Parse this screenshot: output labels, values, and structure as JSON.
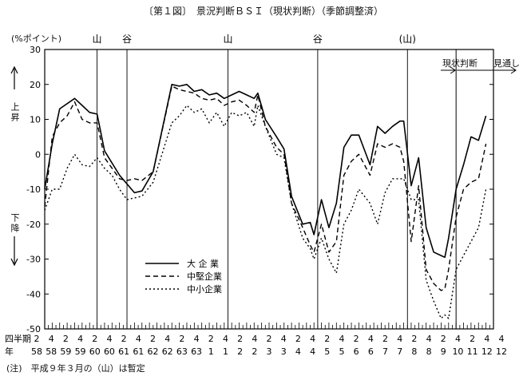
{
  "page": {
    "title": "〔第１図〕　景況判断ＢＳＩ（現状判断）（季節調整済）",
    "unit": "(%ポイント)",
    "up_label": "上昇",
    "down_label": "下降",
    "note": "(注)　平成９年３月の（山）は暫定",
    "x_row1_label": "四半期",
    "x_row2_label": "年",
    "current_label": "現状判断",
    "forecast_label": "見通し"
  },
  "chart_data": {
    "type": "line",
    "ylim": [
      -50,
      30
    ],
    "yticks": [
      30,
      20,
      10,
      0,
      -10,
      -20,
      -30,
      -40,
      -50
    ],
    "grid": false,
    "legend_position": "center-left",
    "quarter_labels": [
      "2",
      "4",
      "2",
      "4",
      "2",
      "4",
      "2",
      "4",
      "2",
      "4",
      "2",
      "4",
      "2",
      "4",
      "2",
      "4",
      "2",
      "4",
      "2",
      "4",
      "2",
      "4",
      "2",
      "4",
      "2",
      "4",
      "2",
      "4",
      "2",
      "4",
      "2",
      "4",
      "4"
    ],
    "year_labels": [
      "58",
      "58",
      "59",
      "59",
      "60",
      "60",
      "61",
      "61",
      "62",
      "62",
      "63",
      "63",
      "1",
      "1",
      "2",
      "2",
      "3",
      "3",
      "4",
      "4",
      "5",
      "5",
      "6",
      "6",
      "7",
      "7",
      "8",
      "8",
      "9",
      "10",
      "11",
      "12",
      "12"
    ],
    "phase_markers": [
      {
        "label": "山",
        "x": 14
      },
      {
        "label": "谷",
        "x": 22
      },
      {
        "label": "山",
        "x": 49
      },
      {
        "label": "谷",
        "x": 73
      },
      {
        "label": "(山)",
        "x": 97
      }
    ],
    "forecast_start_x": 110,
    "series": [
      {
        "name": "大 企 業",
        "dash": "",
        "color": "#000000",
        "points": [
          [
            0,
            -10
          ],
          [
            2,
            3
          ],
          [
            4,
            13
          ],
          [
            8,
            16
          ],
          [
            10,
            14
          ],
          [
            12,
            12
          ],
          [
            14,
            11.5
          ],
          [
            16,
            1
          ],
          [
            20,
            -6
          ],
          [
            24,
            -11
          ],
          [
            26,
            -10.5
          ],
          [
            29,
            -5
          ],
          [
            34,
            20
          ],
          [
            36,
            19.5
          ],
          [
            38,
            20
          ],
          [
            40,
            18
          ],
          [
            42,
            18.5
          ],
          [
            44,
            17
          ],
          [
            46,
            17.5
          ],
          [
            48,
            16
          ],
          [
            50,
            17
          ],
          [
            52,
            18
          ],
          [
            54,
            17
          ],
          [
            56,
            16
          ],
          [
            57,
            17.5
          ],
          [
            59,
            10
          ],
          [
            62,
            5
          ],
          [
            64,
            1.5
          ],
          [
            66,
            -12
          ],
          [
            69,
            -20
          ],
          [
            71,
            -19.5
          ],
          [
            72,
            -23
          ],
          [
            74,
            -13
          ],
          [
            76,
            -21
          ],
          [
            78,
            -14
          ],
          [
            80,
            2
          ],
          [
            82,
            5.5
          ],
          [
            84,
            5.5
          ],
          [
            87,
            -3
          ],
          [
            89,
            8
          ],
          [
            91,
            6
          ],
          [
            93,
            8
          ],
          [
            95,
            9.5
          ],
          [
            96,
            9.5
          ],
          [
            98,
            -9
          ],
          [
            100,
            -1
          ],
          [
            102,
            -21
          ],
          [
            104,
            -28
          ],
          [
            106,
            -29
          ],
          [
            107,
            -29.5
          ],
          [
            108,
            -24
          ],
          [
            110,
            -10
          ],
          [
            112,
            -3
          ],
          [
            114,
            5
          ],
          [
            116,
            4
          ],
          [
            118,
            11
          ]
        ]
      },
      {
        "name": "中堅企業",
        "dash": "6,4",
        "color": "#000000",
        "points": [
          [
            0,
            -15
          ],
          [
            2,
            5
          ],
          [
            4,
            9
          ],
          [
            6,
            11
          ],
          [
            8,
            15
          ],
          [
            10,
            10
          ],
          [
            12,
            9
          ],
          [
            14,
            9
          ],
          [
            16,
            -1
          ],
          [
            20,
            -7
          ],
          [
            22,
            -7.5
          ],
          [
            24,
            -7
          ],
          [
            26,
            -7.5
          ],
          [
            29,
            -5
          ],
          [
            34,
            19.5
          ],
          [
            36,
            18.5
          ],
          [
            38,
            18
          ],
          [
            40,
            17.5
          ],
          [
            42,
            16
          ],
          [
            44,
            15.5
          ],
          [
            46,
            16
          ],
          [
            48,
            14
          ],
          [
            50,
            15
          ],
          [
            52,
            15.5
          ],
          [
            54,
            14
          ],
          [
            56,
            12
          ],
          [
            57,
            17
          ],
          [
            59,
            8
          ],
          [
            62,
            2
          ],
          [
            64,
            0
          ],
          [
            66,
            -14
          ],
          [
            69,
            -21
          ],
          [
            71,
            -26
          ],
          [
            72,
            -28
          ],
          [
            74,
            -20
          ],
          [
            76,
            -28
          ],
          [
            78,
            -25
          ],
          [
            80,
            -6
          ],
          [
            82,
            -2
          ],
          [
            84,
            0
          ],
          [
            87,
            -6
          ],
          [
            89,
            3
          ],
          [
            91,
            2
          ],
          [
            93,
            3
          ],
          [
            95,
            2
          ],
          [
            96,
            -2
          ],
          [
            98,
            -25
          ],
          [
            100,
            -9
          ],
          [
            102,
            -33
          ],
          [
            104,
            -37
          ],
          [
            106,
            -39
          ],
          [
            107,
            -38.5
          ],
          [
            108,
            -33
          ],
          [
            110,
            -18
          ],
          [
            112,
            -10
          ],
          [
            114,
            -8
          ],
          [
            116,
            -7
          ],
          [
            118,
            3
          ]
        ]
      },
      {
        "name": "中小企業",
        "dash": "2,3",
        "color": "#000000",
        "points": [
          [
            0,
            -16
          ],
          [
            2,
            -10
          ],
          [
            4,
            -10
          ],
          [
            6,
            -4
          ],
          [
            8,
            0
          ],
          [
            10,
            -3
          ],
          [
            12,
            -3.5
          ],
          [
            14,
            -1
          ],
          [
            16,
            -4
          ],
          [
            18,
            -6
          ],
          [
            20,
            -10
          ],
          [
            22,
            -13
          ],
          [
            24,
            -12.5
          ],
          [
            26,
            -12
          ],
          [
            29,
            -8
          ],
          [
            34,
            9
          ],
          [
            36,
            11
          ],
          [
            38,
            14
          ],
          [
            40,
            12
          ],
          [
            42,
            13
          ],
          [
            44,
            9
          ],
          [
            46,
            12
          ],
          [
            48,
            8
          ],
          [
            50,
            12
          ],
          [
            52,
            11
          ],
          [
            54,
            12
          ],
          [
            56,
            8
          ],
          [
            57,
            14
          ],
          [
            59,
            8
          ],
          [
            62,
            0
          ],
          [
            64,
            -1
          ],
          [
            66,
            -14
          ],
          [
            69,
            -24
          ],
          [
            71,
            -27
          ],
          [
            72,
            -30
          ],
          [
            74,
            -24
          ],
          [
            76,
            -30
          ],
          [
            78,
            -34
          ],
          [
            80,
            -20
          ],
          [
            82,
            -16
          ],
          [
            84,
            -10
          ],
          [
            87,
            -14
          ],
          [
            89,
            -20
          ],
          [
            91,
            -11
          ],
          [
            93,
            -7
          ],
          [
            95,
            -7
          ],
          [
            96,
            -7
          ],
          [
            98,
            -13
          ],
          [
            100,
            -13
          ],
          [
            102,
            -36
          ],
          [
            104,
            -42
          ],
          [
            106,
            -47
          ],
          [
            107,
            -46
          ],
          [
            108,
            -47
          ],
          [
            110,
            -33
          ],
          [
            112,
            -29
          ],
          [
            114,
            -25
          ],
          [
            116,
            -21
          ],
          [
            118,
            -10
          ]
        ]
      }
    ]
  }
}
